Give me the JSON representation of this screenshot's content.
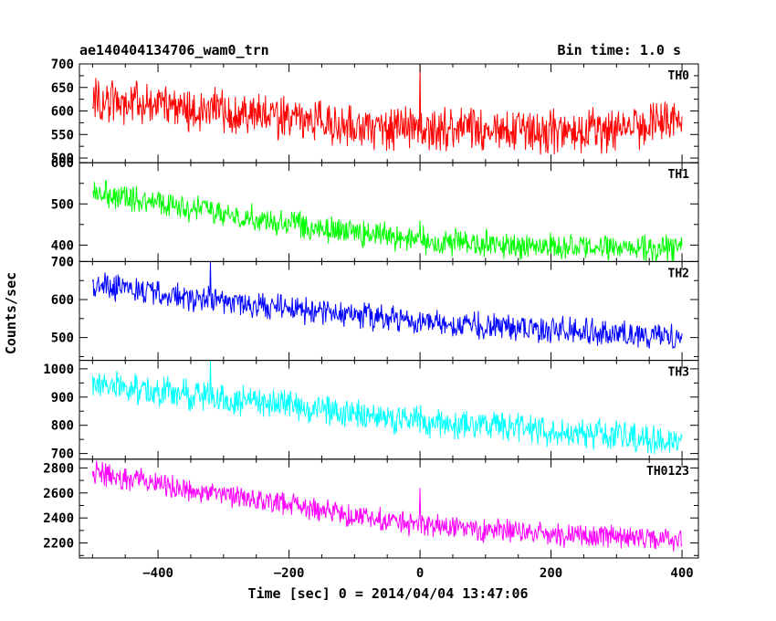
{
  "chart_data": {
    "type": "line",
    "title": "ae140404134706_wam0_trn",
    "subtitle": "Bin time: 1.0 s",
    "xlabel": "Time [sec] 0 = 2014/04/04 13:47:06",
    "ylabel": "Counts/sec",
    "xlim": [
      -520,
      425
    ],
    "x_ticks": [
      -400,
      -200,
      0,
      200,
      400
    ],
    "x_tick_labels": [
      "−400",
      "−200",
      "0",
      "200",
      "400"
    ],
    "x_data_range": [
      -500,
      400
    ],
    "grid": false,
    "panels": [
      {
        "name": "TH0",
        "color": "#ff0000",
        "ylim": [
          490,
          700
        ],
        "y_ticks": [
          500,
          550,
          600,
          650,
          700
        ],
        "trend": [
          [
            -500,
            625
          ],
          [
            -300,
            600
          ],
          [
            -100,
            568
          ],
          [
            0,
            560
          ],
          [
            200,
            558
          ],
          [
            300,
            560
          ],
          [
            400,
            575
          ]
        ],
        "noise_amplitude": 38,
        "spike": {
          "x": 0,
          "y": 700
        }
      },
      {
        "name": "TH1",
        "color": "#00ff00",
        "ylim": [
          360,
          600
        ],
        "y_ticks": [
          400,
          500,
          600
        ],
        "trend": [
          [
            -500,
            530
          ],
          [
            -300,
            475
          ],
          [
            -100,
            430
          ],
          [
            0,
            412
          ],
          [
            200,
            395
          ],
          [
            400,
            390
          ]
        ],
        "noise_amplitude": 26,
        "spike": {
          "x": 0,
          "y": 460
        }
      },
      {
        "name": "TH2",
        "color": "#0000ff",
        "ylim": [
          440,
          700
        ],
        "y_ticks": [
          500,
          600,
          700
        ],
        "trend": [
          [
            -500,
            638
          ],
          [
            -300,
            595
          ],
          [
            -100,
            558
          ],
          [
            0,
            540
          ],
          [
            200,
            522
          ],
          [
            400,
            502
          ]
        ],
        "noise_amplitude": 28,
        "spike": {
          "x": -320,
          "y": 700
        }
      },
      {
        "name": "TH3",
        "color": "#00ffff",
        "ylim": [
          680,
          1030
        ],
        "y_ticks": [
          700,
          800,
          900,
          1000
        ],
        "trend": [
          [
            -500,
            945
          ],
          [
            -300,
            895
          ],
          [
            -100,
            840
          ],
          [
            0,
            815
          ],
          [
            200,
            782
          ],
          [
            400,
            745
          ]
        ],
        "noise_amplitude": 42,
        "spike": {
          "x": -320,
          "y": 1030
        }
      },
      {
        "name": "TH0123",
        "color": "#ff00ff",
        "ylim": [
          2080,
          2870
        ],
        "y_ticks": [
          2200,
          2400,
          2600,
          2800
        ],
        "trend": [
          [
            -500,
            2760
          ],
          [
            -300,
            2580
          ],
          [
            -100,
            2420
          ],
          [
            0,
            2340
          ],
          [
            200,
            2270
          ],
          [
            400,
            2230
          ]
        ],
        "noise_amplitude": 75,
        "spike": {
          "x": 0,
          "y": 2640
        }
      }
    ]
  }
}
